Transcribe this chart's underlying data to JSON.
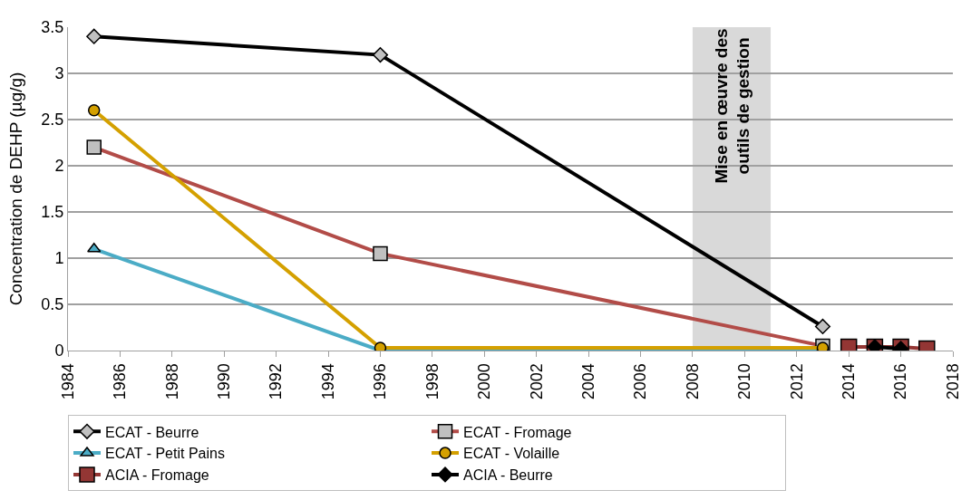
{
  "chart_data": {
    "type": "line",
    "ylabel": "Concentration de DEHP (µg/g)",
    "xlim": [
      1984,
      2018
    ],
    "xticks": [
      1984,
      1986,
      1988,
      1990,
      1992,
      1994,
      1996,
      1998,
      2000,
      2002,
      2004,
      2006,
      2008,
      2010,
      2012,
      2014,
      2016,
      2018
    ],
    "ylim": [
      0,
      3.5
    ],
    "yticks": [
      0,
      0.5,
      1,
      1.5,
      2,
      2.5,
      3,
      3.5
    ],
    "grid": "y",
    "legend": "bottom",
    "bands": [
      {
        "axis": "x",
        "from": 2008,
        "to": 2011,
        "label": "Mise en œuvre des\noutils de gestion",
        "color": "#d9d9d9"
      }
    ],
    "series": [
      {
        "name": "ECAT - Beurre",
        "color": "#000000",
        "marker": "diamond",
        "colors": [
          "#c0c0c0",
          "#c0c0c0",
          "#c0c0c0"
        ],
        "x": [
          1985,
          1996,
          2013
        ],
        "values": [
          3.4,
          3.2,
          0.26
        ]
      },
      {
        "name": "ECAT - Fromage",
        "color": "#b24c48",
        "marker": "square",
        "colors": [
          "#c0c0c0",
          "#c0c0c0",
          "#c0c0c0"
        ],
        "x": [
          1985,
          1996,
          2013
        ],
        "values": [
          2.2,
          1.05,
          0.05
        ]
      },
      {
        "name": "ECAT - Petit Pains",
        "color": "#4bacc6",
        "marker": "triangle",
        "colors": [
          "#4bacc6",
          "#4bacc6",
          "#4bacc6"
        ],
        "x": [
          1985,
          1996,
          2013
        ],
        "values": [
          1.1,
          0.0,
          0.02
        ]
      },
      {
        "name": "ECAT - Volaille",
        "color": "#d4a000",
        "marker": "circle",
        "colors": [
          "#d4a000",
          "#d4a000",
          "#d4a000"
        ],
        "x": [
          1985,
          1996,
          2013
        ],
        "values": [
          2.6,
          0.03,
          0.03
        ]
      },
      {
        "name": "ACIA - Fromage",
        "color": "#943634",
        "marker": "square",
        "colors": [
          "#943634",
          "#943634",
          "#943634",
          "#943634"
        ],
        "x": [
          2014,
          2015,
          2016,
          2017
        ],
        "values": [
          0.04,
          0.04,
          0.04,
          0.02
        ]
      },
      {
        "name": "ACIA - Beurre",
        "color": "#000000",
        "marker": "diamond",
        "colors": [
          "#000000",
          "#000000"
        ],
        "x": [
          2015,
          2016
        ],
        "values": [
          0.04,
          0.02
        ]
      }
    ]
  }
}
